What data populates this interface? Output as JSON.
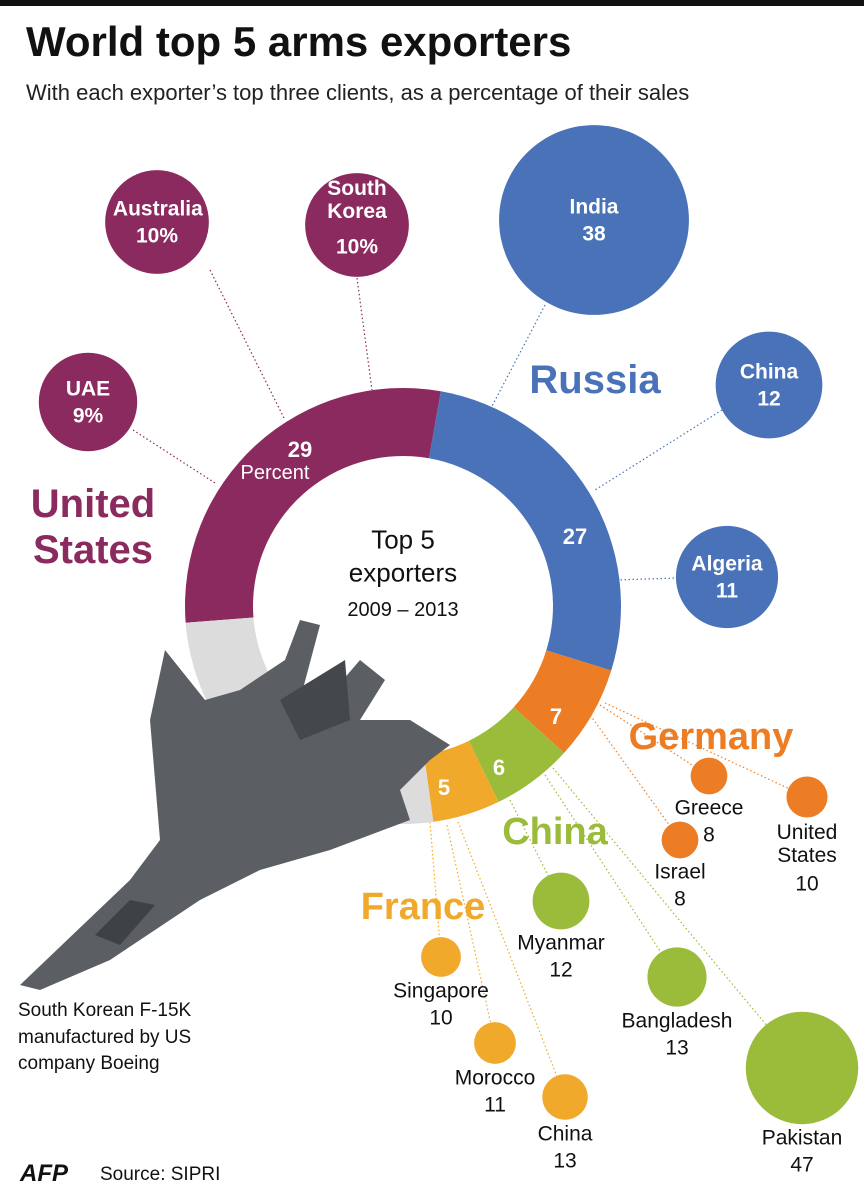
{
  "chart_data": {
    "type": "donut",
    "title": "World top 5 arms exporters",
    "subtitle": "With each exporter’s top three clients, as a percentage of their sales",
    "center_title": "Top 5 exporters",
    "period": "2009 – 2013",
    "unit": "Percent",
    "categories": [
      "United States",
      "Russia",
      "Germany",
      "China",
      "France"
    ],
    "values": [
      29,
      27,
      7,
      6,
      5
    ],
    "colors": [
      "#8b2a5e",
      "#4a72b8",
      "#ec7d24",
      "#9bbb3b",
      "#f0a92a"
    ],
    "clients": [
      {
        "names": [
          "Australia",
          "South Korea",
          "UAE"
        ],
        "values": [
          10,
          10,
          9
        ],
        "value_labels": [
          "10%",
          "10%",
          "9%"
        ]
      },
      {
        "names": [
          "India",
          "China",
          "Algeria"
        ],
        "values": [
          38,
          12,
          11
        ]
      },
      {
        "names": [
          "Greece",
          "Israel",
          "United States"
        ],
        "values": [
          8,
          8,
          10
        ]
      },
      {
        "names": [
          "Myanmar",
          "Bangladesh",
          "Pakistan"
        ],
        "values": [
          12,
          13,
          47
        ]
      },
      {
        "names": [
          "Singapore",
          "Morocco",
          "China"
        ],
        "values": [
          10,
          11,
          13
        ]
      }
    ],
    "caption": "South Korean F-15K manufactured by US company Boeing",
    "logo": "AFP",
    "source": "Source: SIPRI"
  }
}
